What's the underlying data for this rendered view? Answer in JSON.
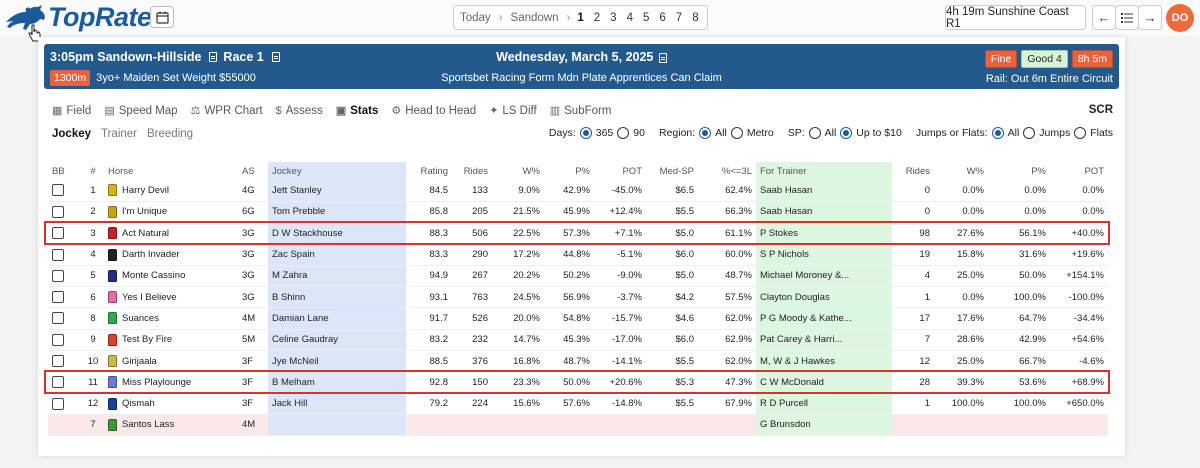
{
  "app": {
    "logo_text": "TopRate",
    "brand_color": "#1c5a9e",
    "accent_color": "#f06a3c"
  },
  "nav": {
    "today": "Today",
    "venue": "Sandown",
    "races": [
      "1",
      "2",
      "3",
      "4",
      "5",
      "6",
      "7",
      "8"
    ],
    "active_race": "1",
    "next_race": "4h 19m Sunshine Coast R1",
    "avatar_initials": "DO"
  },
  "race": {
    "time_venue": "3:05pm  Sandown-Hillside",
    "race_label": "Race 1",
    "distance": "1300m",
    "conditions": "3yo+ Maiden Set Weight $55000",
    "date": "Wednesday, March 5, 2025",
    "name": "Sportsbet Racing Form Mdn Plate Apprentices Can Claim",
    "weather": "Fine",
    "track": "Good 4",
    "countdown": "8h 5m",
    "rail": "Rail: Out 6m Entire Circuit"
  },
  "tabs": [
    {
      "label": "Field",
      "icon": "table-icon",
      "active": false
    },
    {
      "label": "Speed Map",
      "icon": "bar-chart-icon",
      "active": false
    },
    {
      "label": "WPR Chart",
      "icon": "scales-icon",
      "active": false
    },
    {
      "label": "Assess",
      "icon": "dollar-icon",
      "active": false
    },
    {
      "label": "Stats",
      "icon": "document-icon",
      "active": true
    },
    {
      "label": "Head to Head",
      "icon": "gear-icon",
      "active": false
    },
    {
      "label": "LS Diff",
      "icon": "sparkle-icon",
      "active": false
    },
    {
      "label": "SubForm",
      "icon": "grid-icon",
      "active": false
    }
  ],
  "scr_label": "SCR",
  "subtabs": [
    {
      "label": "Jockey",
      "active": true
    },
    {
      "label": "Trainer",
      "active": false
    },
    {
      "label": "Breeding",
      "active": false
    }
  ],
  "filters": {
    "days_label": "Days:",
    "days_options": [
      "365",
      "90"
    ],
    "days_selected": "365",
    "region_label": "Region:",
    "region_options": [
      "All",
      "Metro"
    ],
    "region_selected": "All",
    "sp_label": "SP:",
    "sp_options": [
      "All",
      "Up to $10"
    ],
    "sp_selected": "Up to $10",
    "surface_label": "Jumps or Flats:",
    "surface_options": [
      "All",
      "Jumps",
      "Flats"
    ],
    "surface_selected": "All"
  },
  "table": {
    "headers": [
      "BB",
      "#",
      "Horse",
      "AS",
      "Jockey",
      "Rating",
      "Rides",
      "W%",
      "P%",
      "POT",
      "Med-SP",
      "%<=3L",
      "For Trainer",
      "Rides",
      "W%",
      "P%",
      "POT"
    ],
    "rows": [
      {
        "num": "1",
        "horse": "Harry Devil",
        "as": "4G",
        "jockey": "Jett Stanley",
        "rating": "84.5",
        "rides": "133",
        "w": "9.0%",
        "p": "42.9%",
        "pot": "-45.0%",
        "medsp": "$6.5",
        "l3": "62.4%",
        "trainer": "Saab Hasan",
        "t_rides": "0",
        "t_w": "0.0%",
        "t_p": "0.0%",
        "t_pot": "0.0%",
        "silk": "#d9b21c",
        "highlight": false,
        "scratched": false
      },
      {
        "num": "2",
        "horse": "I'm Unique",
        "as": "6G",
        "jockey": "Tom Prebble",
        "rating": "85.8",
        "rides": "205",
        "w": "21.5%",
        "p": "45.9%",
        "pot": "+12.4%",
        "medsp": "$5.5",
        "l3": "66.3%",
        "trainer": "Saab Hasan",
        "t_rides": "0",
        "t_w": "0.0%",
        "t_p": "0.0%",
        "t_pot": "0.0%",
        "silk": "#c9a21a",
        "highlight": false,
        "scratched": false
      },
      {
        "num": "3",
        "horse": "Act Natural",
        "as": "3G",
        "jockey": "D W Stackhouse",
        "rating": "88.3",
        "rides": "506",
        "w": "22.5%",
        "p": "57.3%",
        "pot": "+7.1%",
        "medsp": "$5.0",
        "l3": "61.1%",
        "trainer": "P Stokes",
        "t_rides": "98",
        "t_w": "27.6%",
        "t_p": "56.1%",
        "t_pot": "+40.0%",
        "silk": "#c8202a",
        "highlight": true,
        "scratched": false
      },
      {
        "num": "4",
        "horse": "Darth Invader",
        "as": "3G",
        "jockey": "Zac Spain",
        "rating": "83.3",
        "rides": "290",
        "w": "17.2%",
        "p": "44.8%",
        "pot": "-5.1%",
        "medsp": "$6.0",
        "l3": "60.0%",
        "trainer": "S P Nichols",
        "t_rides": "19",
        "t_w": "15.8%",
        "t_p": "31.6%",
        "t_pot": "+19.6%",
        "silk": "#222222",
        "highlight": false,
        "scratched": false
      },
      {
        "num": "5",
        "horse": "Monte Cassino",
        "as": "3G",
        "jockey": "M Zahra",
        "rating": "94.9",
        "rides": "267",
        "w": "20.2%",
        "p": "50.2%",
        "pot": "-9.0%",
        "medsp": "$5.0",
        "l3": "48.7%",
        "trainer": "Michael Moroney &...",
        "t_rides": "4",
        "t_w": "25.0%",
        "t_p": "50.0%",
        "t_pot": "+154.1%",
        "silk": "#1f2f8a",
        "highlight": false,
        "scratched": false
      },
      {
        "num": "6",
        "horse": "Yes I Believe",
        "as": "3G",
        "jockey": "B Shinn",
        "rating": "93.1",
        "rides": "763",
        "w": "24.5%",
        "p": "56.9%",
        "pot": "-3.7%",
        "medsp": "$4.2",
        "l3": "57.5%",
        "trainer": "Clayton Douglas",
        "t_rides": "1",
        "t_w": "0.0%",
        "t_p": "100.0%",
        "t_pot": "-100.0%",
        "silk": "#e66aa8",
        "highlight": false,
        "scratched": false
      },
      {
        "num": "8",
        "horse": "Suances",
        "as": "4M",
        "jockey": "Damian Lane",
        "rating": "91.7",
        "rides": "526",
        "w": "20.0%",
        "p": "54.8%",
        "pot": "-15.7%",
        "medsp": "$4.6",
        "l3": "62.0%",
        "trainer": "P G Moody & Kathe...",
        "t_rides": "17",
        "t_w": "17.6%",
        "t_p": "64.7%",
        "t_pot": "-34.4%",
        "silk": "#2fa84f",
        "highlight": false,
        "scratched": false
      },
      {
        "num": "9",
        "horse": "Test By Fire",
        "as": "5M",
        "jockey": "Celine Gaudray",
        "rating": "83.2",
        "rides": "232",
        "w": "14.7%",
        "p": "45.3%",
        "pot": "-17.0%",
        "medsp": "$6.0",
        "l3": "62.9%",
        "trainer": "Pat Carey & Harri...",
        "t_rides": "7",
        "t_w": "28.6%",
        "t_p": "42.9%",
        "t_pot": "+54.6%",
        "silk": "#e0402a",
        "highlight": false,
        "scratched": false
      },
      {
        "num": "10",
        "horse": "Girijaala",
        "as": "3F",
        "jockey": "Jye McNeil",
        "rating": "88.5",
        "rides": "376",
        "w": "16.8%",
        "p": "48.7%",
        "pot": "-14.1%",
        "medsp": "$5.5",
        "l3": "62.0%",
        "trainer": "M, W & J Hawkes",
        "t_rides": "12",
        "t_w": "25.0%",
        "t_p": "66.7%",
        "t_pot": "-4.6%",
        "silk": "#cdb84a",
        "highlight": false,
        "scratched": false
      },
      {
        "num": "11",
        "horse": "Miss Playlounge",
        "as": "3F",
        "jockey": "B Melham",
        "rating": "92.8",
        "rides": "150",
        "w": "23.3%",
        "p": "50.0%",
        "pot": "+20.6%",
        "medsp": "$5.3",
        "l3": "47.3%",
        "trainer": "C W McDonald",
        "t_rides": "28",
        "t_w": "39.3%",
        "t_p": "53.6%",
        "t_pot": "+68.9%",
        "silk": "#6a7bd6",
        "highlight": true,
        "scratched": false
      },
      {
        "num": "12",
        "horse": "Qismah",
        "as": "3F",
        "jockey": "Jack Hill",
        "rating": "79.2",
        "rides": "224",
        "w": "15.6%",
        "p": "57.6%",
        "pot": "-14.8%",
        "medsp": "$5.5",
        "l3": "67.9%",
        "trainer": "R D Purcell",
        "t_rides": "1",
        "t_w": "100.0%",
        "t_p": "100.0%",
        "t_pot": "+650.0%",
        "silk": "#1c3f9c",
        "highlight": false,
        "scratched": false
      },
      {
        "num": "7",
        "horse": "Santos Lass",
        "as": "4M",
        "jockey": "",
        "rating": "",
        "rides": "",
        "w": "",
        "p": "",
        "pot": "",
        "medsp": "",
        "l3": "",
        "trainer": "G Brunsdon",
        "t_rides": "",
        "t_w": "",
        "t_p": "",
        "t_pot": "",
        "silk": "#3a9a3a",
        "highlight": false,
        "scratched": true
      }
    ]
  }
}
